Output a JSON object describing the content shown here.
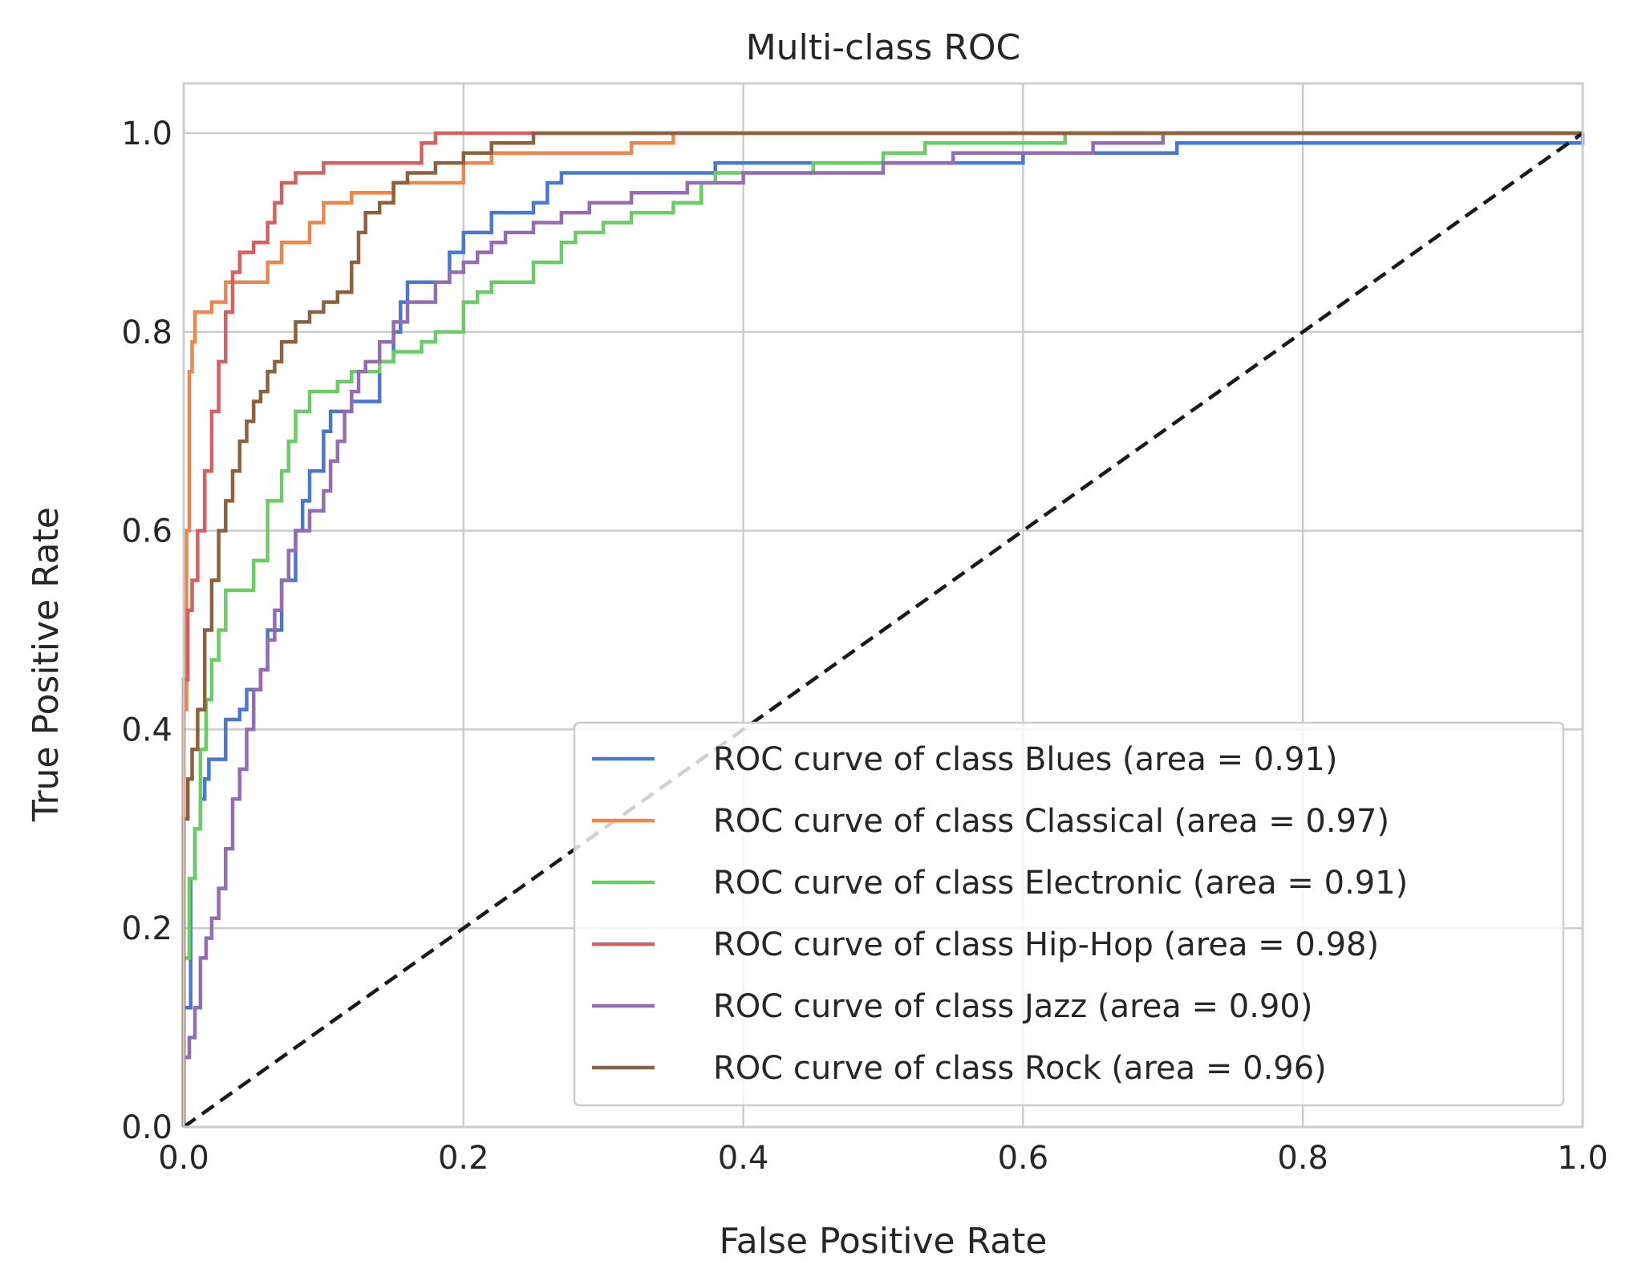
{
  "chart_data": {
    "type": "line",
    "title": "Multi-class ROC",
    "xlabel": "False Positive Rate",
    "ylabel": "True Positive Rate",
    "xlim": [
      0.0,
      1.0
    ],
    "ylim": [
      0.0,
      1.05
    ],
    "xticks": [
      "0.0",
      "0.2",
      "0.4",
      "0.6",
      "0.8",
      "1.0"
    ],
    "yticks": [
      "0.0",
      "0.2",
      "0.4",
      "0.6",
      "0.8",
      "1.0"
    ],
    "xtick_values": [
      0.0,
      0.2,
      0.4,
      0.6,
      0.8,
      1.0
    ],
    "ytick_values": [
      0.0,
      0.2,
      0.4,
      0.6,
      0.8,
      1.0
    ],
    "grid": true,
    "legend_position": "lower-right",
    "diagonal": {
      "x": [
        0,
        1
      ],
      "y": [
        0,
        1
      ],
      "color": "#1a1a1a",
      "style": "dashed"
    },
    "series": [
      {
        "name": "ROC curve of class Blues (area = 0.91)",
        "color": "#4878d0",
        "x": [
          0.0,
          0.0,
          0.005,
          0.008,
          0.012,
          0.015,
          0.018,
          0.022,
          0.03,
          0.04,
          0.045,
          0.055,
          0.06,
          0.07,
          0.08,
          0.085,
          0.09,
          0.1,
          0.105,
          0.11,
          0.12,
          0.14,
          0.15,
          0.155,
          0.16,
          0.17,
          0.19,
          0.2,
          0.22,
          0.25,
          0.26,
          0.27,
          0.38,
          0.4,
          0.45,
          0.6,
          0.62,
          0.7,
          0.71,
          1.0
        ],
        "y": [
          0.0,
          0.12,
          0.25,
          0.3,
          0.33,
          0.35,
          0.37,
          0.37,
          0.41,
          0.42,
          0.44,
          0.46,
          0.5,
          0.55,
          0.6,
          0.63,
          0.66,
          0.7,
          0.72,
          0.72,
          0.73,
          0.77,
          0.8,
          0.83,
          0.85,
          0.85,
          0.88,
          0.9,
          0.92,
          0.93,
          0.95,
          0.96,
          0.97,
          0.97,
          0.97,
          0.98,
          0.98,
          0.98,
          0.99,
          1.0
        ]
      },
      {
        "name": "ROC curve of class Classical (area = 0.97)",
        "color": "#ee854a",
        "x": [
          0.0,
          0.0,
          0.002,
          0.004,
          0.006,
          0.008,
          0.02,
          0.03,
          0.06,
          0.07,
          0.09,
          0.1,
          0.12,
          0.13,
          0.15,
          0.17,
          0.2,
          0.22,
          0.3,
          0.32,
          0.34,
          0.35,
          1.0
        ],
        "y": [
          0.0,
          0.42,
          0.6,
          0.76,
          0.79,
          0.82,
          0.83,
          0.85,
          0.87,
          0.89,
          0.91,
          0.93,
          0.94,
          0.94,
          0.95,
          0.95,
          0.97,
          0.98,
          0.98,
          0.99,
          0.99,
          1.0,
          1.0
        ]
      },
      {
        "name": "ROC curve of class Electronic (area = 0.91)",
        "color": "#6acc64",
        "x": [
          0.0,
          0.0,
          0.004,
          0.008,
          0.012,
          0.016,
          0.02,
          0.025,
          0.03,
          0.04,
          0.05,
          0.06,
          0.07,
          0.075,
          0.08,
          0.09,
          0.11,
          0.12,
          0.13,
          0.14,
          0.15,
          0.16,
          0.17,
          0.18,
          0.19,
          0.2,
          0.21,
          0.22,
          0.25,
          0.27,
          0.28,
          0.3,
          0.32,
          0.35,
          0.37,
          0.38,
          0.45,
          0.5,
          0.53,
          0.6,
          0.63,
          1.0
        ],
        "y": [
          0.0,
          0.17,
          0.25,
          0.3,
          0.38,
          0.43,
          0.47,
          0.5,
          0.54,
          0.54,
          0.57,
          0.63,
          0.66,
          0.69,
          0.72,
          0.74,
          0.75,
          0.76,
          0.76,
          0.77,
          0.78,
          0.78,
          0.79,
          0.8,
          0.8,
          0.83,
          0.84,
          0.85,
          0.87,
          0.89,
          0.9,
          0.91,
          0.92,
          0.93,
          0.95,
          0.96,
          0.97,
          0.98,
          0.99,
          0.99,
          1.0,
          1.0
        ]
      },
      {
        "name": "ROC curve of class Hip-Hop (area = 0.98)",
        "color": "#d65f5f",
        "x": [
          0.0,
          0.0,
          0.003,
          0.006,
          0.01,
          0.015,
          0.02,
          0.025,
          0.03,
          0.035,
          0.04,
          0.05,
          0.06,
          0.065,
          0.07,
          0.08,
          0.1,
          0.17,
          0.18,
          1.0
        ],
        "y": [
          0.0,
          0.45,
          0.52,
          0.55,
          0.6,
          0.66,
          0.72,
          0.77,
          0.82,
          0.86,
          0.88,
          0.89,
          0.91,
          0.93,
          0.95,
          0.96,
          0.97,
          0.99,
          1.0,
          1.0
        ]
      },
      {
        "name": "ROC curve of class Jazz (area = 0.90)",
        "color": "#956cb4",
        "x": [
          0.0,
          0.0,
          0.004,
          0.008,
          0.012,
          0.016,
          0.02,
          0.025,
          0.03,
          0.035,
          0.04,
          0.045,
          0.05,
          0.055,
          0.06,
          0.065,
          0.07,
          0.075,
          0.08,
          0.09,
          0.1,
          0.105,
          0.11,
          0.115,
          0.12,
          0.125,
          0.13,
          0.14,
          0.15,
          0.16,
          0.18,
          0.19,
          0.2,
          0.21,
          0.22,
          0.23,
          0.25,
          0.26,
          0.27,
          0.28,
          0.29,
          0.3,
          0.32,
          0.35,
          0.36,
          0.38,
          0.4,
          0.44,
          0.47,
          0.5,
          0.55,
          0.6,
          0.65,
          0.69,
          0.7,
          1.0
        ],
        "y": [
          0.0,
          0.07,
          0.09,
          0.12,
          0.17,
          0.19,
          0.21,
          0.24,
          0.28,
          0.33,
          0.36,
          0.4,
          0.44,
          0.46,
          0.49,
          0.52,
          0.55,
          0.58,
          0.6,
          0.62,
          0.64,
          0.67,
          0.69,
          0.72,
          0.74,
          0.76,
          0.77,
          0.79,
          0.81,
          0.83,
          0.85,
          0.86,
          0.87,
          0.88,
          0.89,
          0.9,
          0.91,
          0.91,
          0.92,
          0.92,
          0.93,
          0.93,
          0.94,
          0.94,
          0.95,
          0.95,
          0.96,
          0.96,
          0.96,
          0.97,
          0.98,
          0.98,
          0.99,
          0.99,
          1.0,
          1.0
        ]
      },
      {
        "name": "ROC curve of class Rock (area = 0.96)",
        "color": "#8c613c",
        "x": [
          0.0,
          0.0,
          0.003,
          0.006,
          0.01,
          0.015,
          0.02,
          0.025,
          0.03,
          0.035,
          0.04,
          0.045,
          0.05,
          0.055,
          0.06,
          0.065,
          0.07,
          0.08,
          0.09,
          0.1,
          0.11,
          0.12,
          0.125,
          0.13,
          0.14,
          0.15,
          0.16,
          0.18,
          0.2,
          0.22,
          0.24,
          0.25,
          1.0
        ],
        "y": [
          0.0,
          0.31,
          0.35,
          0.38,
          0.42,
          0.5,
          0.55,
          0.6,
          0.63,
          0.66,
          0.69,
          0.71,
          0.73,
          0.74,
          0.76,
          0.77,
          0.79,
          0.81,
          0.82,
          0.83,
          0.84,
          0.87,
          0.9,
          0.92,
          0.93,
          0.95,
          0.96,
          0.97,
          0.98,
          0.99,
          0.99,
          1.0,
          1.0
        ]
      }
    ]
  }
}
